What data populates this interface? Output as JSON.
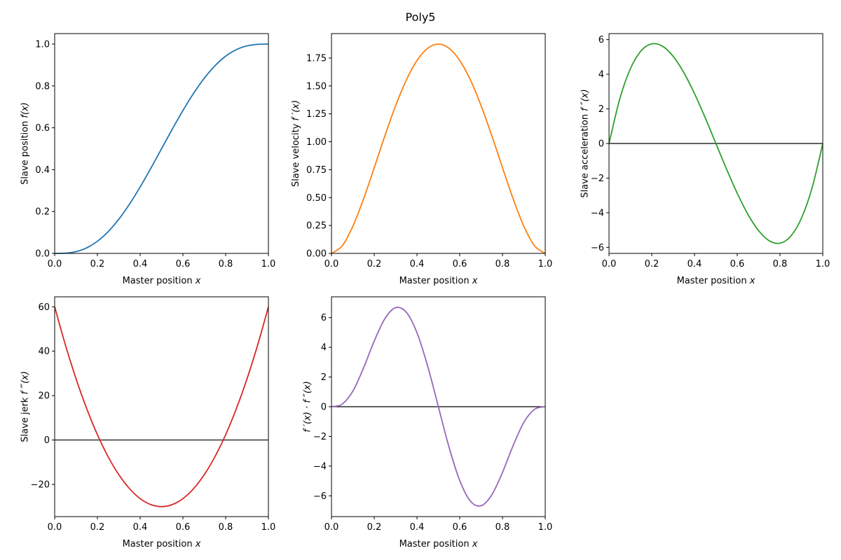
{
  "chart_data": {
    "title": "Poly5",
    "x": [
      0,
      0.05,
      0.1,
      0.15,
      0.2,
      0.25,
      0.3,
      0.35,
      0.4,
      0.45,
      0.5,
      0.55,
      0.6,
      0.65,
      0.7,
      0.75,
      0.8,
      0.85,
      0.9,
      0.95,
      1.0
    ],
    "panels": [
      {
        "type": "line",
        "ylabel_text": "Slave position ",
        "ylabel_math": "f(x)",
        "xlabel_text": "Master position ",
        "xlabel_math": "x",
        "color": "#1f77b4",
        "zero_line": false,
        "xlim": [
          0,
          1
        ],
        "ylim": [
          0,
          1.05
        ],
        "xticks": [
          "0.0",
          "0.2",
          "0.4",
          "0.6",
          "0.8",
          "1.0"
        ],
        "yticks": [
          "0.0",
          "0.2",
          "0.4",
          "0.6",
          "0.8",
          "1.0"
        ],
        "values": [
          0,
          0.00116,
          0.00856,
          0.02661,
          0.05792,
          0.10352,
          0.16308,
          0.23517,
          0.31744,
          0.40687,
          0.5,
          0.59313,
          0.68256,
          0.76483,
          0.83692,
          0.89648,
          0.94208,
          0.97339,
          0.99144,
          0.99884,
          1.0
        ]
      },
      {
        "type": "line",
        "ylabel_text": "Slave velocity ",
        "ylabel_math": "f ′(x)",
        "xlabel_text": "Master position ",
        "xlabel_math": "x",
        "color": "#ff7f0e",
        "zero_line": false,
        "xlim": [
          0,
          1
        ],
        "ylim": [
          0,
          1.969
        ],
        "xticks": [
          "0.0",
          "0.2",
          "0.4",
          "0.6",
          "0.8",
          "1.0"
        ],
        "yticks": [
          "0.00",
          "0.25",
          "0.50",
          "0.75",
          "1.00",
          "1.25",
          "1.50",
          "1.75"
        ],
        "values": [
          0,
          0.06769,
          0.243,
          0.48769,
          0.768,
          1.05469,
          1.323,
          1.55269,
          1.728,
          1.83769,
          1.875,
          1.83769,
          1.728,
          1.55269,
          1.323,
          1.05469,
          0.768,
          0.48769,
          0.243,
          0.06769,
          0
        ]
      },
      {
        "type": "line",
        "ylabel_text": "Slave acceleration ",
        "ylabel_math": "f ″(x)",
        "xlabel_text": "Master position ",
        "xlabel_math": "x",
        "color": "#2ca02c",
        "zero_line": true,
        "xlim": [
          0,
          1
        ],
        "ylim": [
          -6.35,
          6.35
        ],
        "xticks": [
          "0.0",
          "0.2",
          "0.4",
          "0.6",
          "0.8",
          "1.0"
        ],
        "yticks": [
          "−6",
          "−4",
          "−2",
          "0",
          "2",
          "4",
          "6"
        ],
        "values": [
          0,
          2.565,
          4.32,
          5.355,
          5.76,
          5.625,
          5.04,
          4.095,
          2.88,
          1.485,
          0,
          -1.485,
          -2.88,
          -4.095,
          -5.04,
          -5.625,
          -5.76,
          -5.355,
          -4.32,
          -2.565,
          0
        ]
      },
      {
        "type": "line",
        "ylabel_text": "Slave jerk ",
        "ylabel_math": "f ‴(x)",
        "xlabel_text": "Master position ",
        "xlabel_math": "x",
        "color": "#d62728",
        "zero_line": true,
        "xlim": [
          0,
          1
        ],
        "ylim": [
          -34.5,
          64.5
        ],
        "xticks": [
          "0.0",
          "0.2",
          "0.4",
          "0.6",
          "0.8",
          "1.0"
        ],
        "yticks": [
          "−20",
          "0",
          "20",
          "40",
          "60"
        ],
        "values": [
          60,
          42.9,
          27.6,
          14.1,
          2.4,
          -7.5,
          -15.6,
          -21.9,
          -26.4,
          -29.1,
          -30,
          -29.1,
          -26.4,
          -21.9,
          -15.6,
          -7.5,
          2.4,
          14.1,
          27.6,
          42.9,
          60
        ]
      },
      {
        "type": "line",
        "ylabel_text": "",
        "ylabel_math": "f ′(x) · f ″(x)",
        "xlabel_text": "Master position ",
        "xlabel_math": "x",
        "color": "#9467bd",
        "zero_line": true,
        "xlim": [
          0,
          1
        ],
        "ylim": [
          -7.4,
          7.4
        ],
        "xticks": [
          "0.0",
          "0.2",
          "0.4",
          "0.6",
          "0.8",
          "1.0"
        ],
        "yticks": [
          "−6",
          "−4",
          "−2",
          "0",
          "2",
          "4",
          "6"
        ],
        "values": [
          0,
          0.1736,
          1.0498,
          2.6116,
          4.4237,
          5.9326,
          6.6679,
          6.3583,
          4.9766,
          2.729,
          0,
          -2.729,
          -4.9766,
          -6.3583,
          -6.6679,
          -5.9326,
          -4.4237,
          -2.6116,
          -1.0498,
          -0.1736,
          0
        ]
      }
    ]
  }
}
